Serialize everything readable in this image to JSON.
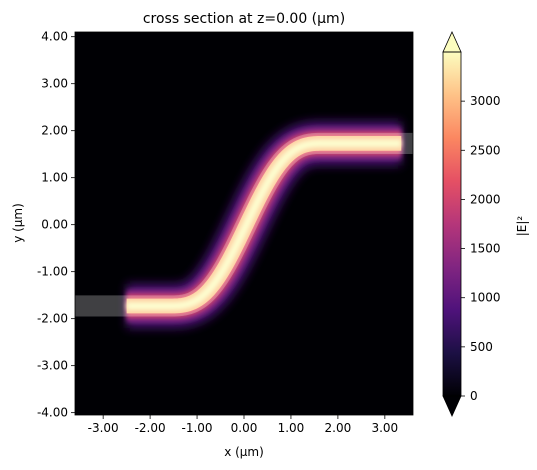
{
  "chart_data": {
    "type": "heatmap",
    "title": "cross section at z=0.00 (µm)",
    "xlabel": "x (µm)",
    "ylabel": "y (µm)",
    "xlim": [
      -3.6,
      3.6
    ],
    "ylim": [
      -4.05,
      4.1
    ],
    "x_ticks": [
      -3,
      -2,
      -1,
      0,
      1,
      2,
      3
    ],
    "x_tick_labels": [
      "-3.00",
      "-2.00",
      "-1.00",
      "0.00",
      "1.00",
      "2.00",
      "3.00"
    ],
    "y_ticks": [
      -4,
      -3,
      -2,
      -1,
      0,
      1,
      2,
      3,
      4
    ],
    "y_tick_labels": [
      "-4.00",
      "-3.00",
      "-2.00",
      "-1.00",
      "0.00",
      "1.00",
      "2.00",
      "3.00",
      "4.00"
    ],
    "colorbar": {
      "label": "|E|²",
      "range": [
        0,
        3500
      ],
      "ticks": [
        0,
        500,
        1000,
        1500,
        2000,
        2500,
        3000
      ],
      "tick_labels": [
        "0",
        "500",
        "1000",
        "1500",
        "2000",
        "2500",
        "3000"
      ],
      "extend": "both",
      "colormap": "magma"
    },
    "field": {
      "description_units": "µm",
      "path_x_range": [
        -2.5,
        3.35
      ],
      "bend_x_range": [
        -1.6,
        1.7
      ],
      "y_start": -1.73,
      "y_end": 1.73,
      "core_width": 0.45,
      "peak_value": 3500
    },
    "waveguide_overlay": {
      "x_range": [
        -3.6,
        3.6
      ],
      "y_start": -1.73,
      "y_end": 1.73,
      "width": 0.45,
      "color": "#ffffff",
      "opacity": 0.25
    },
    "colors": {
      "background": "#000004",
      "colorbar_stops": [
        "#000004",
        "#1c1044",
        "#4f127b",
        "#812581",
        "#b5367a",
        "#e55064",
        "#fb8761",
        "#fec287",
        "#fcfdbf"
      ]
    }
  }
}
